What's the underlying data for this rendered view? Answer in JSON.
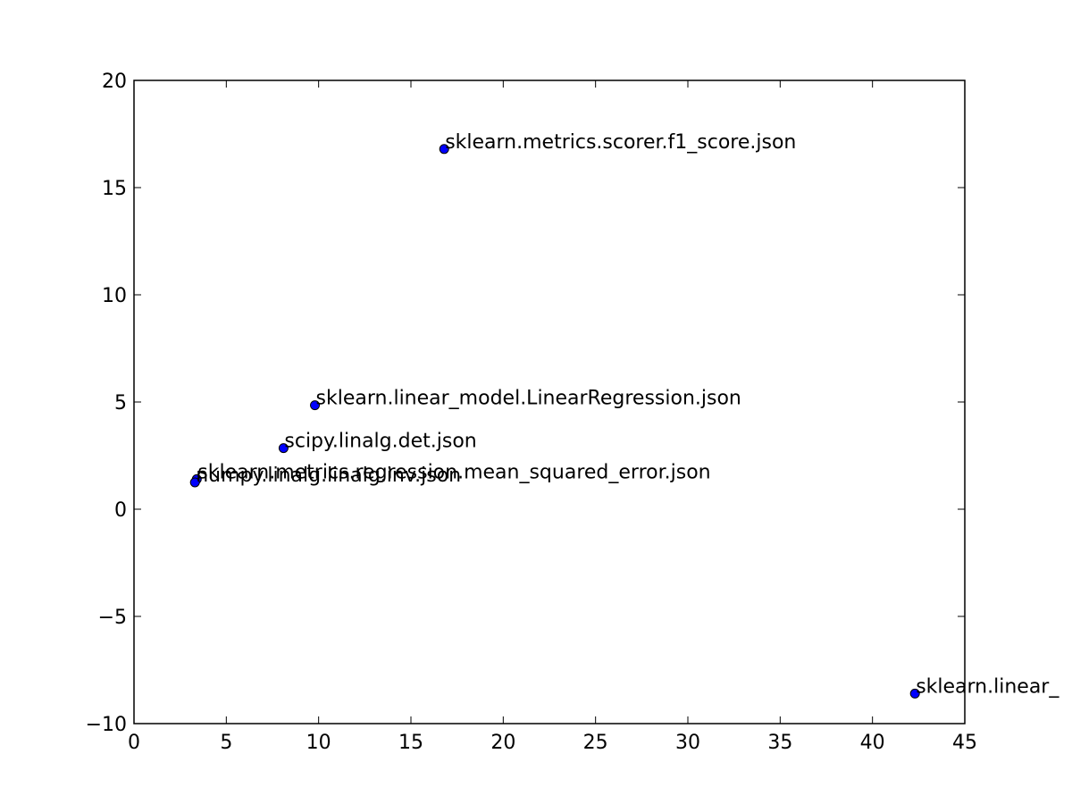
{
  "chart_data": {
    "type": "scatter",
    "title": "",
    "xlabel": "",
    "ylabel": "",
    "xlim": [
      0,
      45
    ],
    "ylim": [
      -10,
      20
    ],
    "grid": false,
    "xticks": [
      0,
      5,
      10,
      15,
      20,
      25,
      30,
      35,
      40,
      45
    ],
    "yticks": [
      -10,
      -5,
      0,
      5,
      10,
      15,
      20
    ],
    "xtick_labels": [
      "0",
      "5",
      "10",
      "15",
      "20",
      "25",
      "30",
      "35",
      "40",
      "45"
    ],
    "ytick_labels": [
      "−10",
      "−5",
      "0",
      "5",
      "10",
      "15",
      "20"
    ],
    "marker_color": "#0000ff",
    "points": [
      {
        "x": 16.8,
        "y": 16.8,
        "label": "sklearn.metrics.scorer.f1_score.json"
      },
      {
        "x": 9.8,
        "y": 4.85,
        "label": "sklearn.linear_model.LinearRegression.json"
      },
      {
        "x": 8.1,
        "y": 2.85,
        "label": "scipy.linalg.det.json"
      },
      {
        "x": 3.4,
        "y": 1.4,
        "label": "sklearn.metrics.regression.mean_squared_error.json"
      },
      {
        "x": 3.3,
        "y": 1.25,
        "label": "numpy.linalg.linalg.inv.json"
      },
      {
        "x": 42.3,
        "y": -8.6,
        "label": "sklearn.linear_"
      }
    ]
  }
}
